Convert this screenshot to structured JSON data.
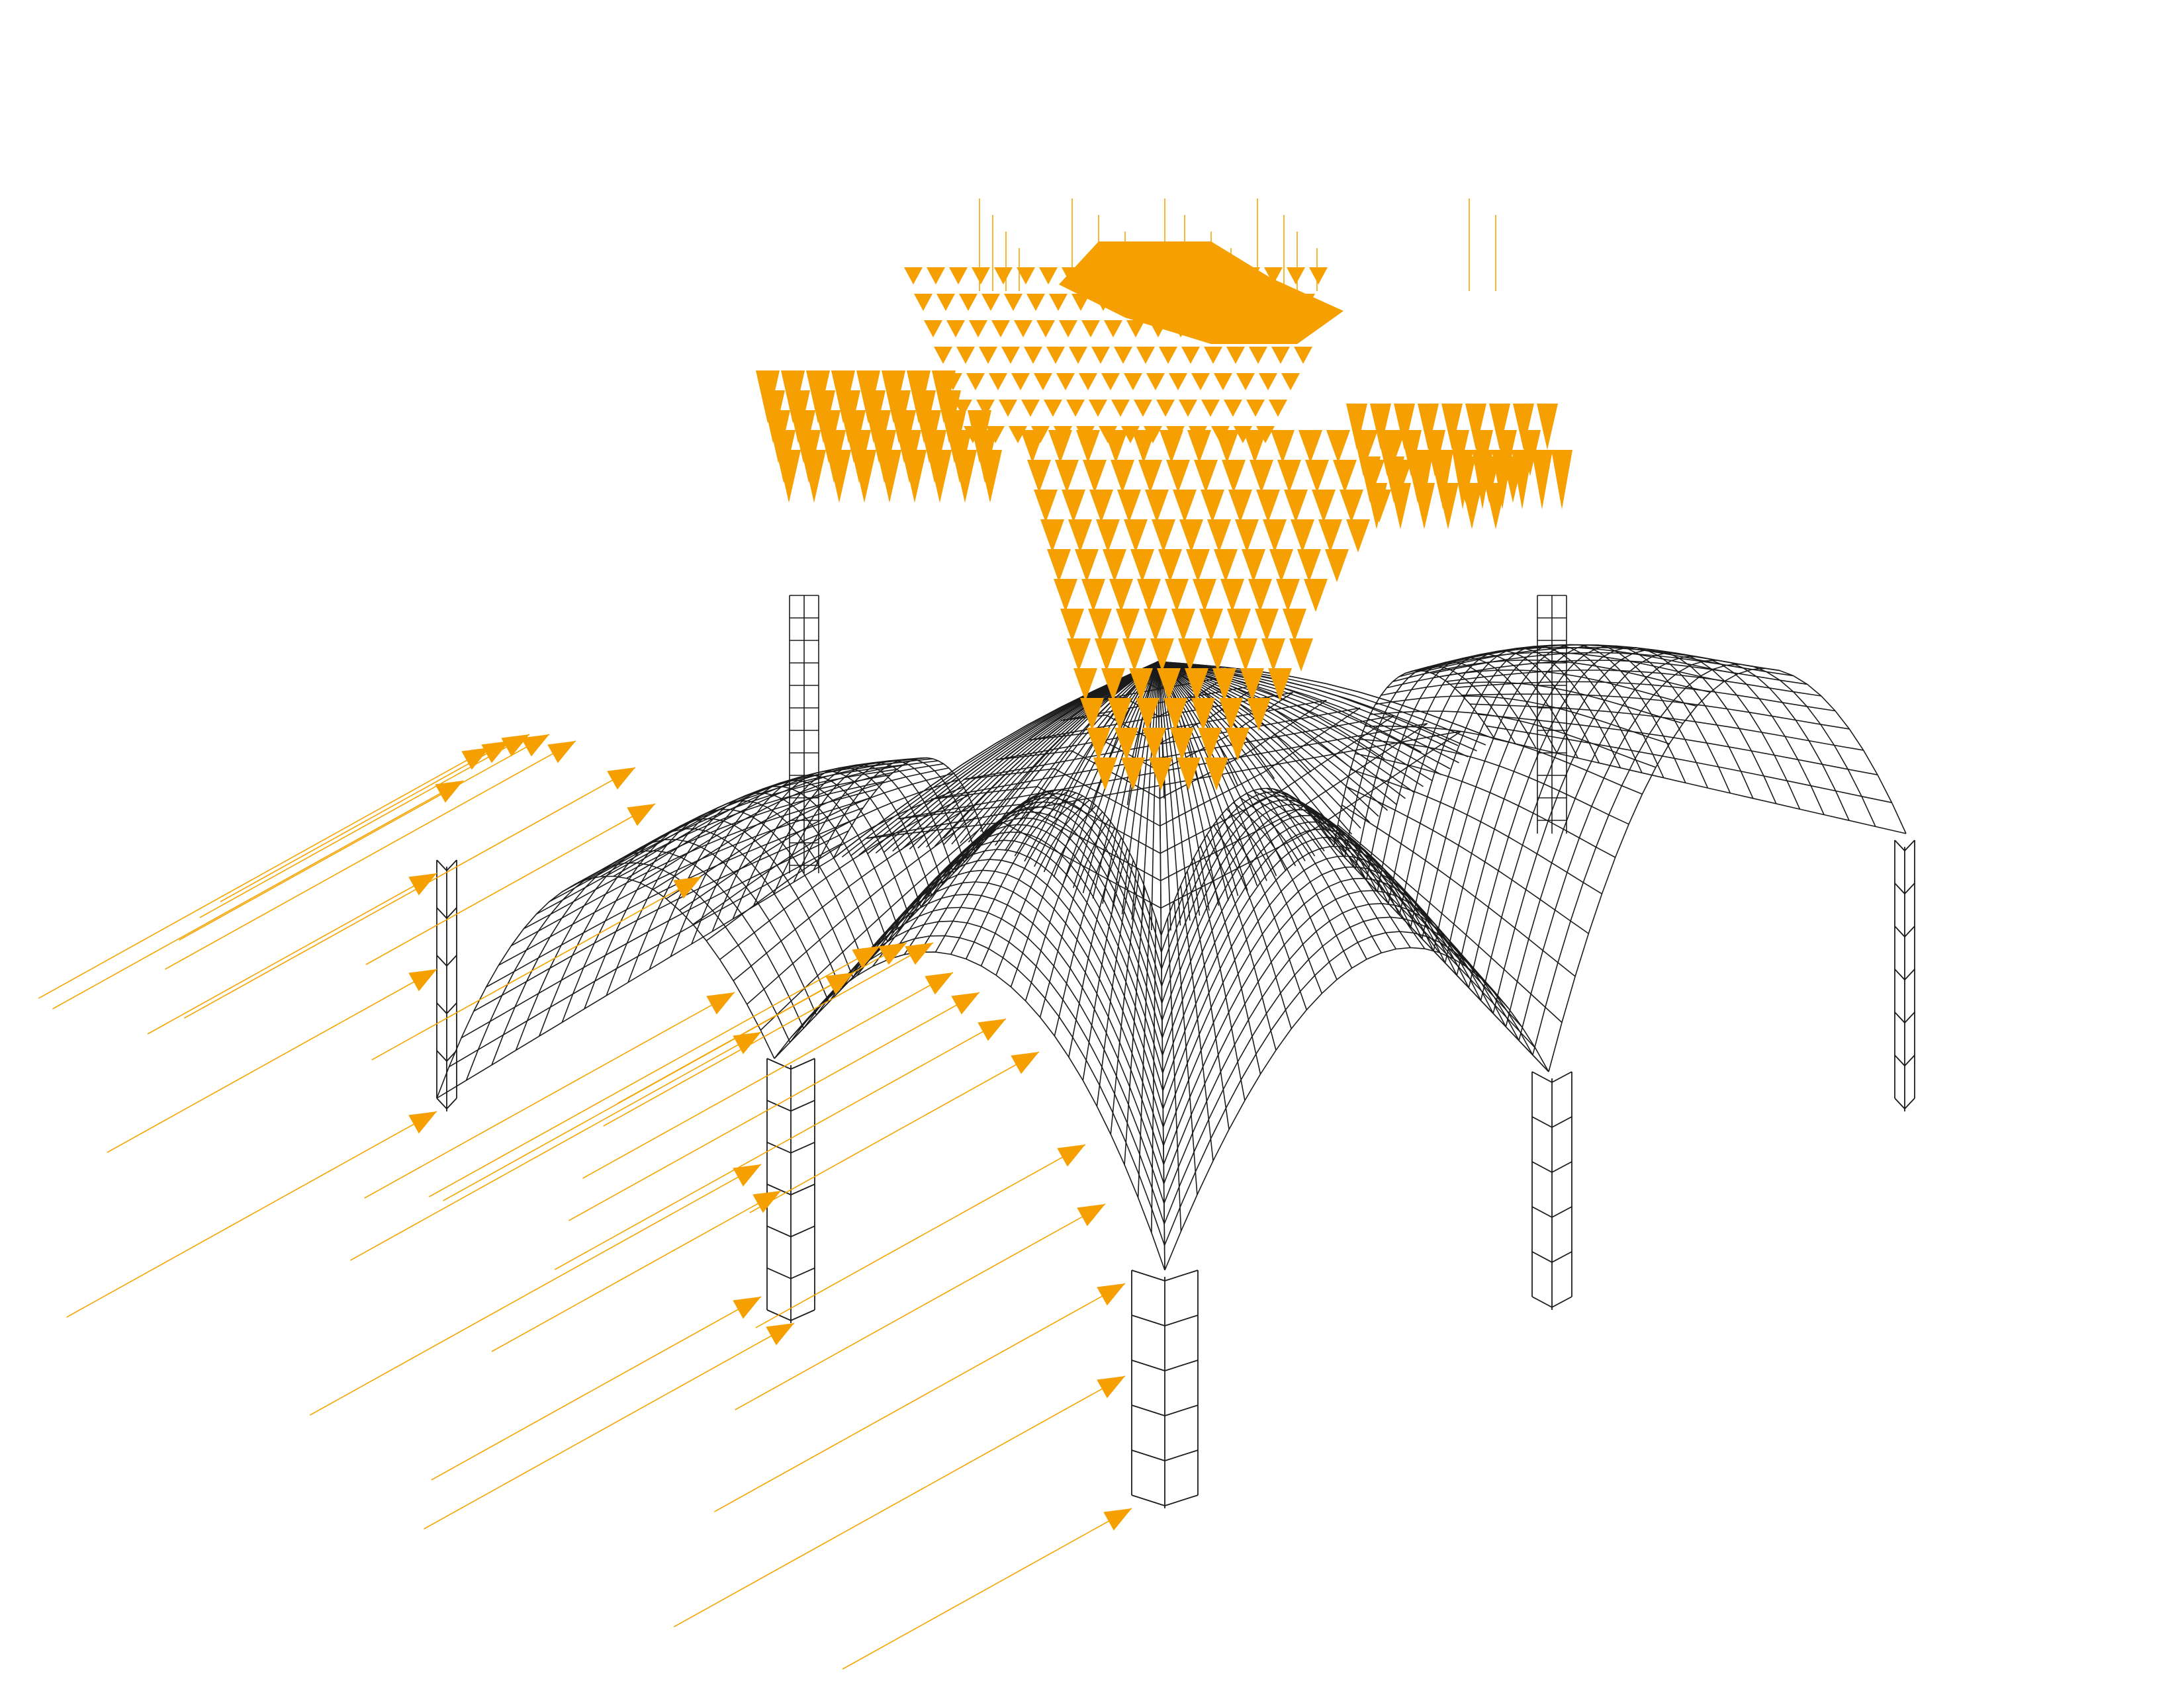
{
  "figure": {
    "description_visible_text": "",
    "colors": {
      "background": "#ffffff",
      "mesh": "#1b1b1b",
      "load_arrow": "#f5a000"
    },
    "structure": {
      "type": "vault-wireframe",
      "piers": 5,
      "arches": 4
    },
    "loads": {
      "type": "point-load-arrows",
      "direction_roof": "downward",
      "direction_supports": "lateral"
    }
  }
}
